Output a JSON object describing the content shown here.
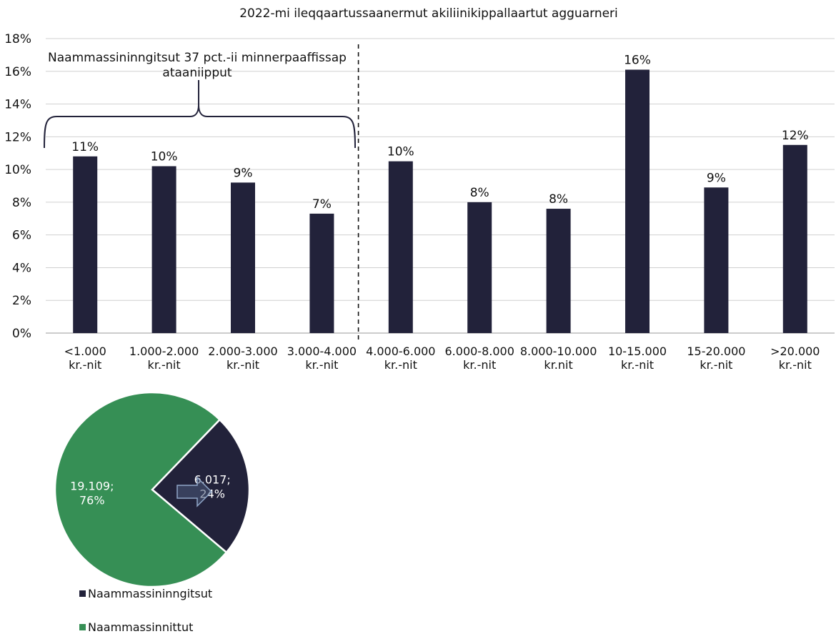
{
  "chart_data": [
    {
      "type": "bar",
      "title": "2022-mi ileqqaartussaanermut akiliinikippallaartut agguarneri",
      "xlabel": "",
      "ylabel": "",
      "ylim": [
        0,
        18
      ],
      "y_ticks": [
        "0%",
        "2%",
        "4%",
        "6%",
        "8%",
        "10%",
        "12%",
        "14%",
        "16%",
        "18%"
      ],
      "grid": true,
      "categories": [
        [
          "<1.000",
          "kr.-nit"
        ],
        [
          "1.000-2.000",
          "kr.-nit"
        ],
        [
          "2.000-3.000",
          "kr.-nit"
        ],
        [
          "3.000-4.000",
          "kr.-nit"
        ],
        [
          "4.000-6.000",
          "kr.-nit"
        ],
        [
          "6.000-8.000",
          "kr.-nit"
        ],
        [
          "8.000-10.000",
          "kr.nit"
        ],
        [
          "10-15.000",
          "kr.-nit"
        ],
        [
          "15-20.000",
          "kr.-nit"
        ],
        [
          ">20.000",
          "kr.-nit"
        ]
      ],
      "values": [
        10.8,
        10.2,
        9.2,
        7.3,
        10.5,
        8.0,
        7.6,
        16.1,
        8.9,
        11.5
      ],
      "data_labels": [
        "11%",
        "10%",
        "9%",
        "7%",
        "10%",
        "8%",
        "8%",
        "16%",
        "9%",
        "12%"
      ],
      "bar_color": "#22223a",
      "annotation": {
        "lines": [
          "Naammassininngitsut 37 pct.-ii minnerpaaffissap",
          "ataaniipput"
        ],
        "brace_span_categories": [
          0,
          3
        ],
        "divider_after_category": 3
      }
    },
    {
      "type": "pie",
      "slices": [
        {
          "name": "Naammassininngitsut",
          "value": 6017,
          "percent": 24,
          "label_lines": [
            "6.017;",
            "24%"
          ],
          "color": "#22223a"
        },
        {
          "name": "Naammassinnittut",
          "value": 19109,
          "percent": 76,
          "label_lines": [
            "19.109;",
            "76%"
          ],
          "color": "#368f55"
        }
      ],
      "legend_position": "bottom"
    }
  ]
}
